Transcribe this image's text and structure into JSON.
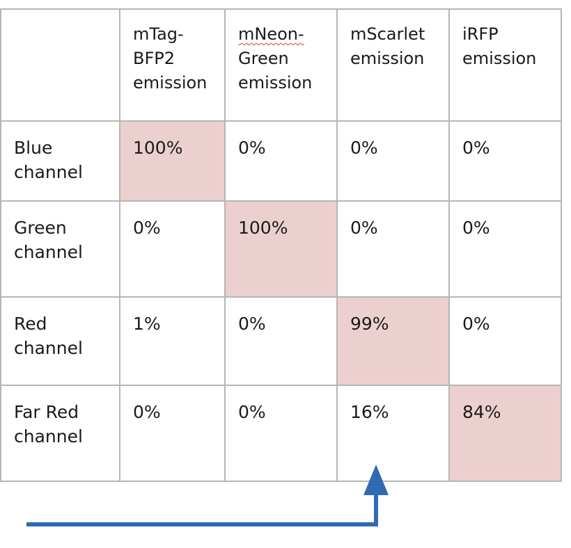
{
  "table": {
    "header": {
      "corner": "",
      "col1_line1": "mTag-",
      "col1_line2": "BFP2",
      "col1_line3": "emission",
      "col2_line1": "mNeon-",
      "col2_line2": "Green",
      "col2_line3": "emission",
      "col3_line1": "mScarlet",
      "col3_line2": "emission",
      "col4_line1": "iRFP",
      "col4_line2": "emission"
    },
    "rows": [
      {
        "label_line1": "Blue",
        "label_line2": "channel",
        "cells": [
          "100%",
          "0%",
          "0%",
          "0%"
        ]
      },
      {
        "label_line1": "Green",
        "label_line2": "channel",
        "cells": [
          "0%",
          "100%",
          "0%",
          "0%"
        ]
      },
      {
        "label_line1": "Red",
        "label_line2": "channel",
        "cells": [
          "1%",
          "0%",
          "99%",
          "0%"
        ]
      },
      {
        "label_line1": "Far Red",
        "label_line2": "channel",
        "cells": [
          "0%",
          "0%",
          "16%",
          "84%"
        ]
      }
    ]
  },
  "colors": {
    "highlight": "#ecd0cf",
    "grid": "#b5b5b5",
    "arrow": "#2f6ab5"
  }
}
